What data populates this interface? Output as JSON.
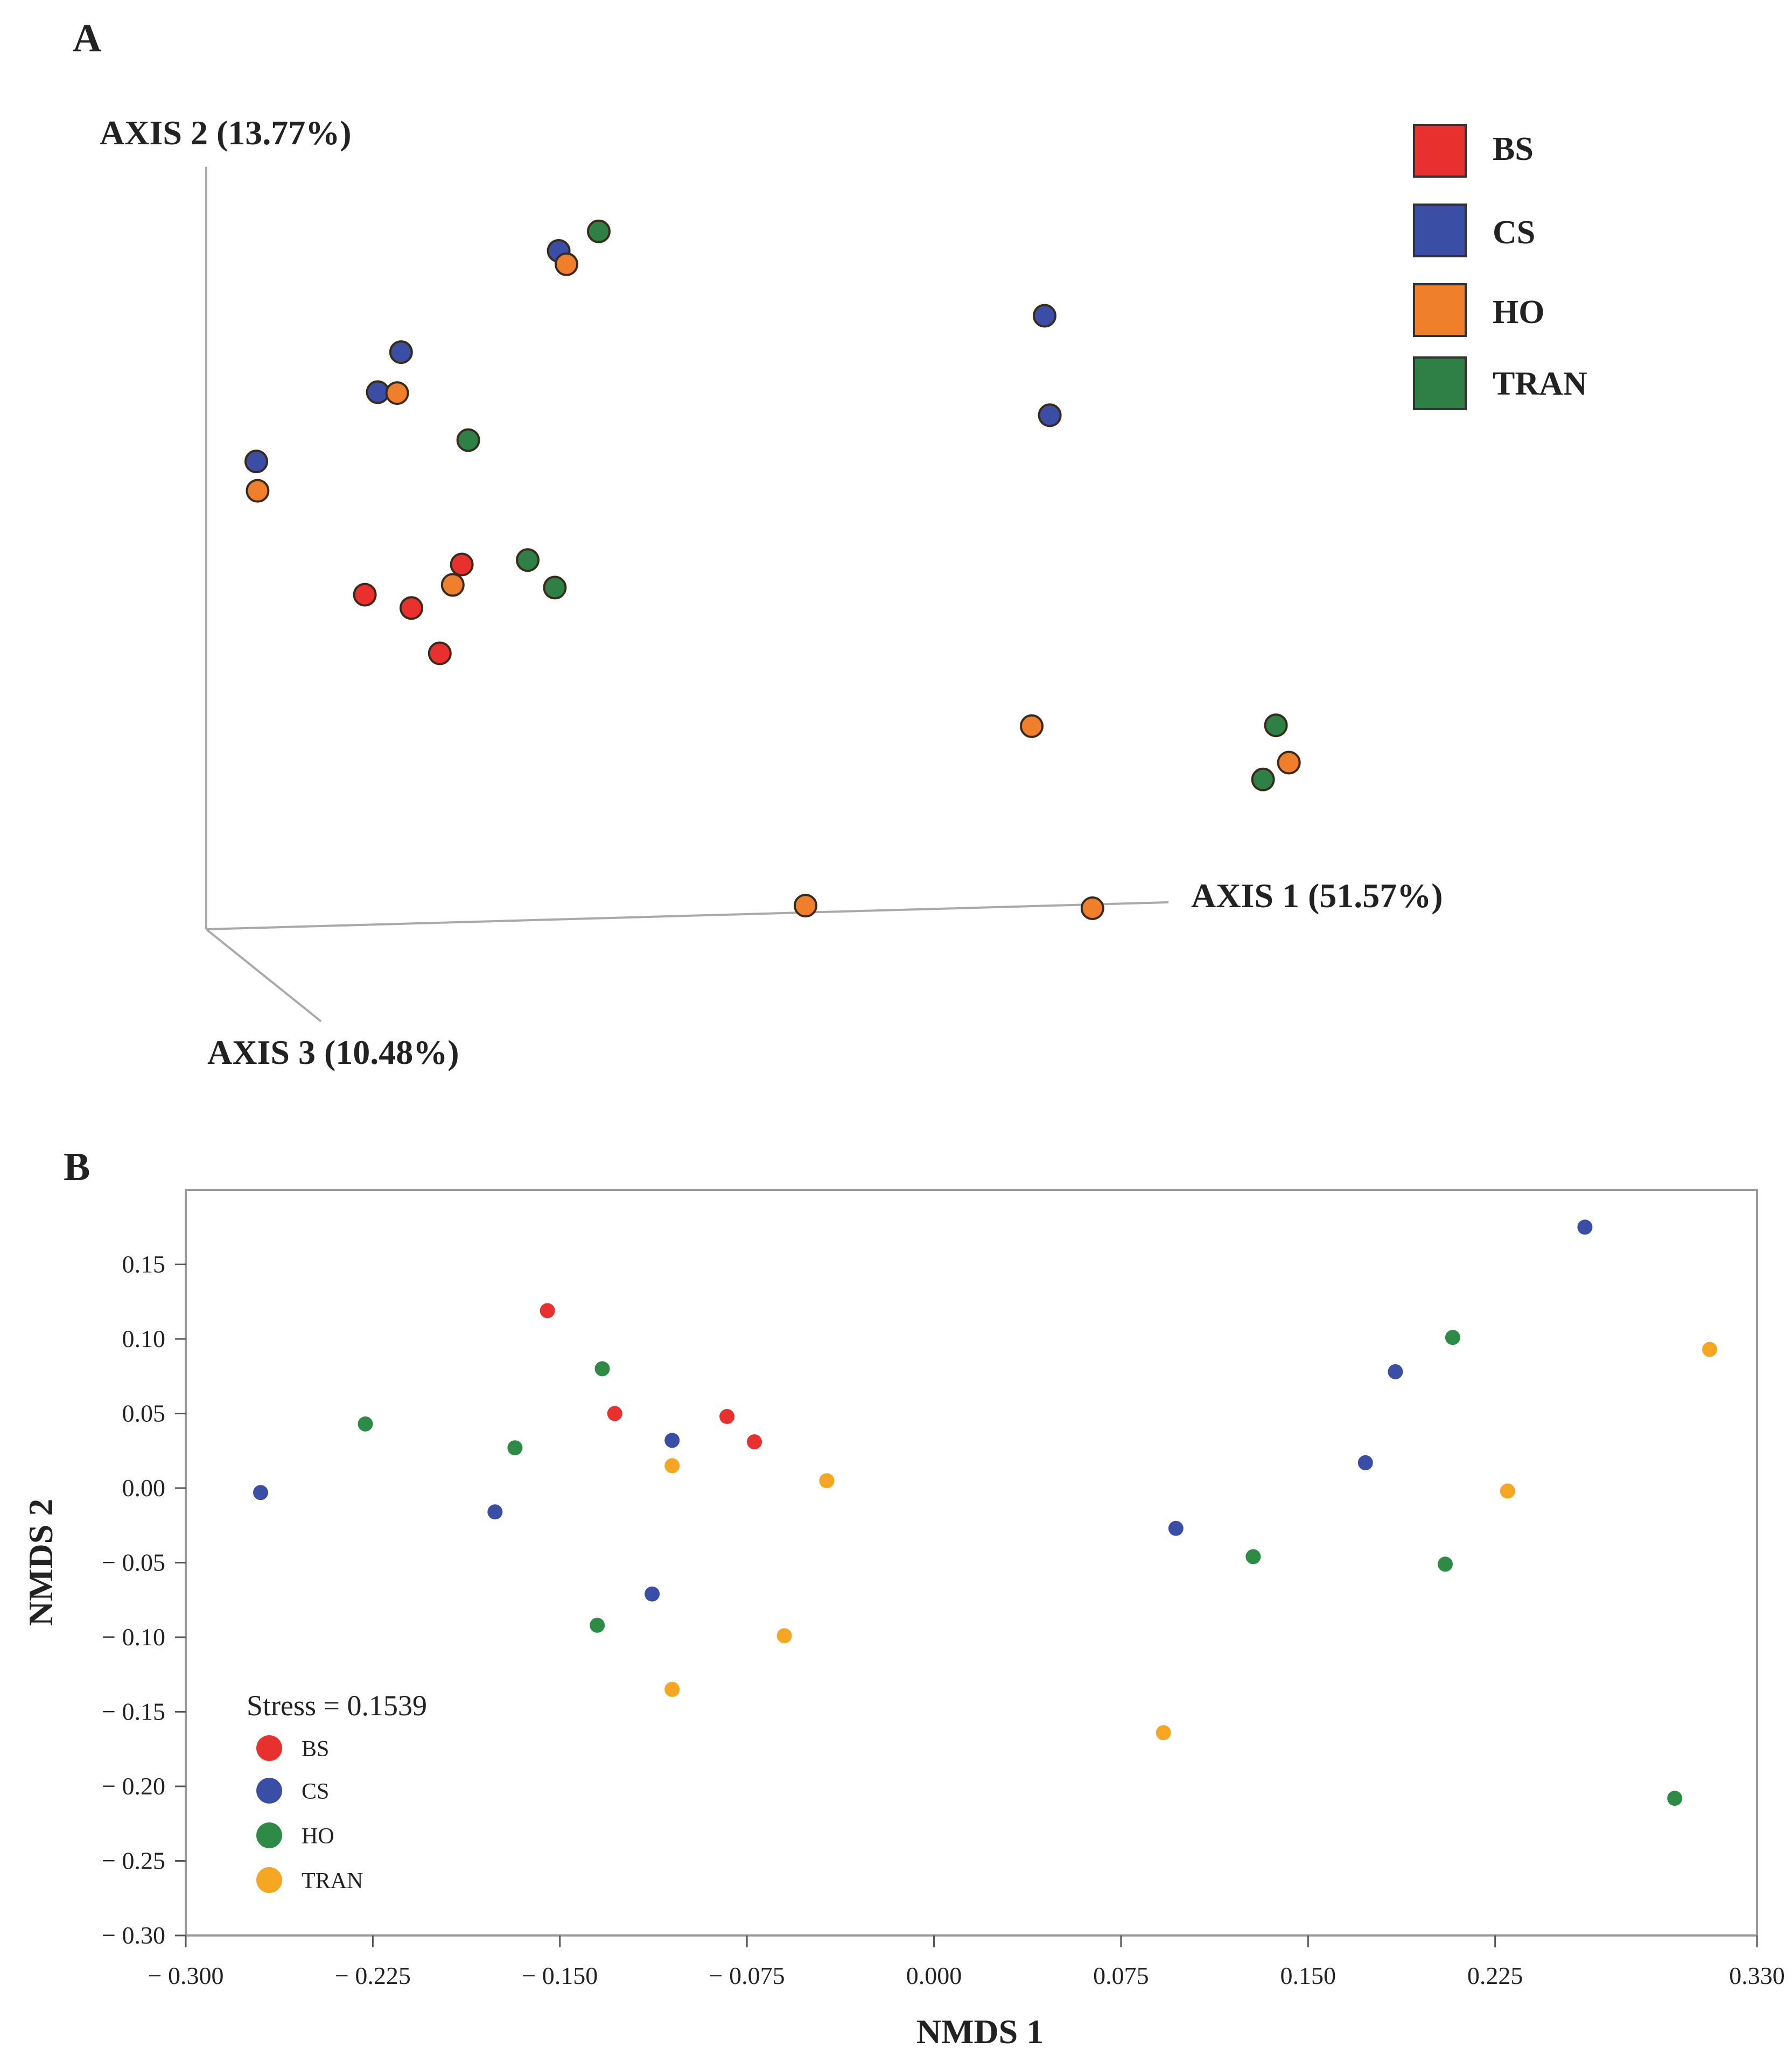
{
  "colors": {
    "BS": "#e8302f",
    "CS": "#3b4ea6",
    "HO": "#f07f2c",
    "TRAN": "#2e8046"
  },
  "colors_b": {
    "BS": "#e8302f",
    "CS": "#3b4ea6",
    "HO": "#2e8b45",
    "TRAN": "#f5a623"
  },
  "chart_data": [
    {
      "panel": "A",
      "type": "scatter",
      "projection": "3d",
      "title": "",
      "axes": {
        "axis1": "AXIS 1 (51.57%)",
        "axis2": "AXIS 2 (13.77%)",
        "axis3": "AXIS 3 (10.48%)"
      },
      "legend": {
        "placement": "top-right",
        "entries": [
          "BS",
          "CS",
          "HO",
          "TRAN"
        ]
      },
      "plane_range": {
        "x": [
          0,
          100
        ],
        "y": [
          0,
          100
        ]
      },
      "points": [
        {
          "group": "CS",
          "x": 72.5,
          "y": 79.0
        },
        {
          "group": "CS",
          "x": 72.9,
          "y": 67.8
        },
        {
          "group": "CS",
          "x": 34.9,
          "y": 86.3
        },
        {
          "group": "CS",
          "x": 11.5,
          "y": 62.6
        },
        {
          "group": "CS",
          "x": 20.9,
          "y": 70.4
        },
        {
          "group": "CS",
          "x": 22.7,
          "y": 74.9
        },
        {
          "group": "HO",
          "x": 35.5,
          "y": 84.8
        },
        {
          "group": "HO",
          "x": 22.4,
          "y": 70.3
        },
        {
          "group": "HO",
          "x": 11.6,
          "y": 59.3
        },
        {
          "group": "HO",
          "x": 26.7,
          "y": 48.7
        },
        {
          "group": "HO",
          "x": 71.5,
          "y": 32.8
        },
        {
          "group": "HO",
          "x": 91.4,
          "y": 28.7
        },
        {
          "group": "HO",
          "x": 54.0,
          "y": 12.6
        },
        {
          "group": "HO",
          "x": 76.2,
          "y": 12.3
        },
        {
          "group": "TRAN",
          "x": 38.0,
          "y": 88.5
        },
        {
          "group": "TRAN",
          "x": 27.9,
          "y": 65.0
        },
        {
          "group": "TRAN",
          "x": 32.5,
          "y": 51.5
        },
        {
          "group": "TRAN",
          "x": 34.6,
          "y": 48.4
        },
        {
          "group": "TRAN",
          "x": 90.4,
          "y": 32.9
        },
        {
          "group": "TRAN",
          "x": 89.4,
          "y": 26.8
        },
        {
          "group": "BS",
          "x": 27.4,
          "y": 51.0
        },
        {
          "group": "BS",
          "x": 19.9,
          "y": 47.6
        },
        {
          "group": "BS",
          "x": 23.5,
          "y": 46.1
        },
        {
          "group": "BS",
          "x": 25.7,
          "y": 41.0
        }
      ]
    },
    {
      "panel": "B",
      "type": "scatter",
      "title": "",
      "xlabel": "NMDS 1",
      "ylabel": "NMDS 2",
      "xlim": [
        -0.3,
        0.33
      ],
      "ylim": [
        -0.3,
        0.2
      ],
      "xticks": [
        -0.3,
        -0.225,
        -0.15,
        -0.075,
        0.0,
        0.075,
        0.15,
        0.225,
        0.33
      ],
      "xtick_labels": [
        "− 0.300",
        "− 0.225",
        "− 0.150",
        "− 0.075",
        "0.000",
        "0.075",
        "0.150",
        "0.225",
        "0.330"
      ],
      "yticks": [
        0.15,
        0.1,
        0.05,
        0.0,
        -0.05,
        -0.1,
        -0.15,
        -0.2,
        -0.25,
        -0.3
      ],
      "ytick_labels": [
        "0.15",
        "0.10",
        "0.05",
        "0.00",
        "− 0.05",
        "− 0.10",
        "− 0.15",
        "− 0.20",
        "− 0.25",
        "− 0.30"
      ],
      "annotation": "Stress = 0.1539",
      "legend": {
        "placement": "bottom-left",
        "entries": [
          "BS",
          "CS",
          "HO",
          "TRAN"
        ]
      },
      "points": [
        {
          "group": "BS",
          "x": -0.155,
          "y": 0.119
        },
        {
          "group": "BS",
          "x": -0.128,
          "y": 0.05
        },
        {
          "group": "BS",
          "x": -0.083,
          "y": 0.048
        },
        {
          "group": "BS",
          "x": -0.072,
          "y": 0.031
        },
        {
          "group": "CS",
          "x": -0.27,
          "y": -0.003
        },
        {
          "group": "CS",
          "x": -0.176,
          "y": -0.016
        },
        {
          "group": "CS",
          "x": -0.105,
          "y": 0.032
        },
        {
          "group": "CS",
          "x": -0.113,
          "y": -0.071
        },
        {
          "group": "CS",
          "x": 0.097,
          "y": -0.027
        },
        {
          "group": "CS",
          "x": 0.173,
          "y": 0.017
        },
        {
          "group": "CS",
          "x": 0.185,
          "y": 0.078
        },
        {
          "group": "CS",
          "x": 0.261,
          "y": 0.175
        },
        {
          "group": "HO",
          "x": -0.228,
          "y": 0.043
        },
        {
          "group": "HO",
          "x": -0.168,
          "y": 0.027
        },
        {
          "group": "HO",
          "x": -0.133,
          "y": 0.08
        },
        {
          "group": "HO",
          "x": -0.135,
          "y": -0.092
        },
        {
          "group": "HO",
          "x": 0.128,
          "y": -0.046
        },
        {
          "group": "HO",
          "x": 0.208,
          "y": 0.101
        },
        {
          "group": "HO",
          "x": 0.205,
          "y": -0.051
        },
        {
          "group": "HO",
          "x": 0.297,
          "y": -0.208
        },
        {
          "group": "TRAN",
          "x": -0.105,
          "y": 0.015
        },
        {
          "group": "TRAN",
          "x": -0.043,
          "y": 0.005
        },
        {
          "group": "TRAN",
          "x": -0.06,
          "y": -0.099
        },
        {
          "group": "TRAN",
          "x": -0.105,
          "y": -0.135
        },
        {
          "group": "TRAN",
          "x": 0.092,
          "y": -0.164
        },
        {
          "group": "TRAN",
          "x": 0.23,
          "y": -0.002
        },
        {
          "group": "TRAN",
          "x": 0.311,
          "y": 0.093
        }
      ]
    }
  ],
  "panel_labels": {
    "a": "A",
    "b": "B"
  }
}
